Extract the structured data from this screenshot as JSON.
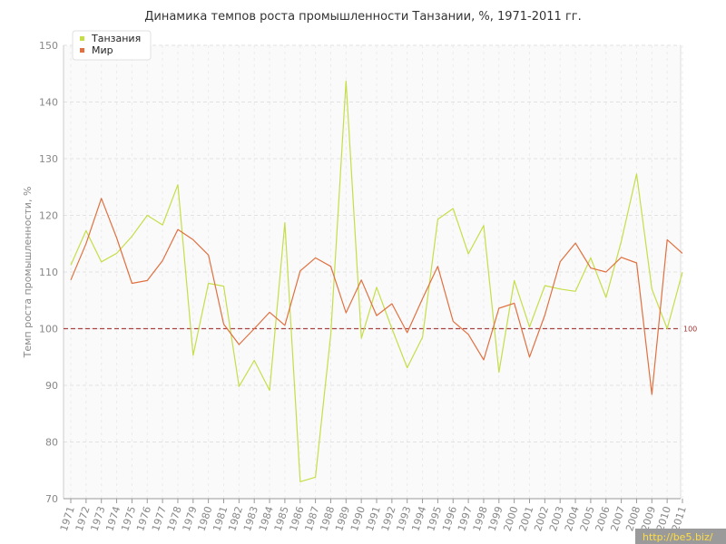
{
  "chart_data": {
    "type": "line",
    "title": "Динамика темпов роста промышленности Танзании, %, 1971-2011 гг.",
    "ylabel": "Темп роста промышленности, %",
    "xlabel": "",
    "ylim": [
      70,
      150
    ],
    "yticks": [
      70,
      80,
      90,
      100,
      110,
      120,
      130,
      140,
      150
    ],
    "grid": true,
    "legend_position": "top-left",
    "categories": [
      "1971",
      "1972",
      "1973",
      "1974",
      "1975",
      "1976",
      "1977",
      "1978",
      "1979",
      "1980",
      "1981",
      "1982",
      "1983",
      "1984",
      "1985",
      "1986",
      "1987",
      "1988",
      "1989",
      "1990",
      "1991",
      "1992",
      "1993",
      "1994",
      "1995",
      "1996",
      "1997",
      "1998",
      "1999",
      "2000",
      "2001",
      "2002",
      "2003",
      "2004",
      "2005",
      "2006",
      "2007",
      "2008",
      "2009",
      "2010",
      "2011"
    ],
    "series": [
      {
        "name": "Танзания",
        "color": "#c5de48",
        "values": [
          111.2,
          117.3,
          111.8,
          113.3,
          116.3,
          120.0,
          118.3,
          125.4,
          95.3,
          108.0,
          107.5,
          89.8,
          94.4,
          89.1,
          118.7,
          73.0,
          73.8,
          99.0,
          143.7,
          98.3,
          107.3,
          100.0,
          93.1,
          98.5,
          119.3,
          121.2,
          113.2,
          118.2,
          92.3,
          108.5,
          100.3,
          107.6,
          107.0,
          106.6,
          112.5,
          105.5,
          115.4,
          127.3,
          107.0,
          100.0,
          110.0
        ]
      },
      {
        "name": "Мир",
        "color": "#e07040",
        "values": [
          108.6,
          115.0,
          123.0,
          116.0,
          108.0,
          108.5,
          112.0,
          117.5,
          115.7,
          113.0,
          100.8,
          97.2,
          100.0,
          102.9,
          100.6,
          110.2,
          112.5,
          111.0,
          102.8,
          108.6,
          102.3,
          104.4,
          99.3,
          105.3,
          111.0,
          101.3,
          99.0,
          94.5,
          103.6,
          104.5,
          95.0,
          102.4,
          111.8,
          115.1,
          110.7,
          110.0,
          112.6,
          111.6,
          88.4,
          115.7,
          113.3
        ]
      }
    ],
    "reference_line": {
      "value": 100,
      "label": "100",
      "color": "#aa4444"
    }
  },
  "watermark": "http://be5.biz/"
}
